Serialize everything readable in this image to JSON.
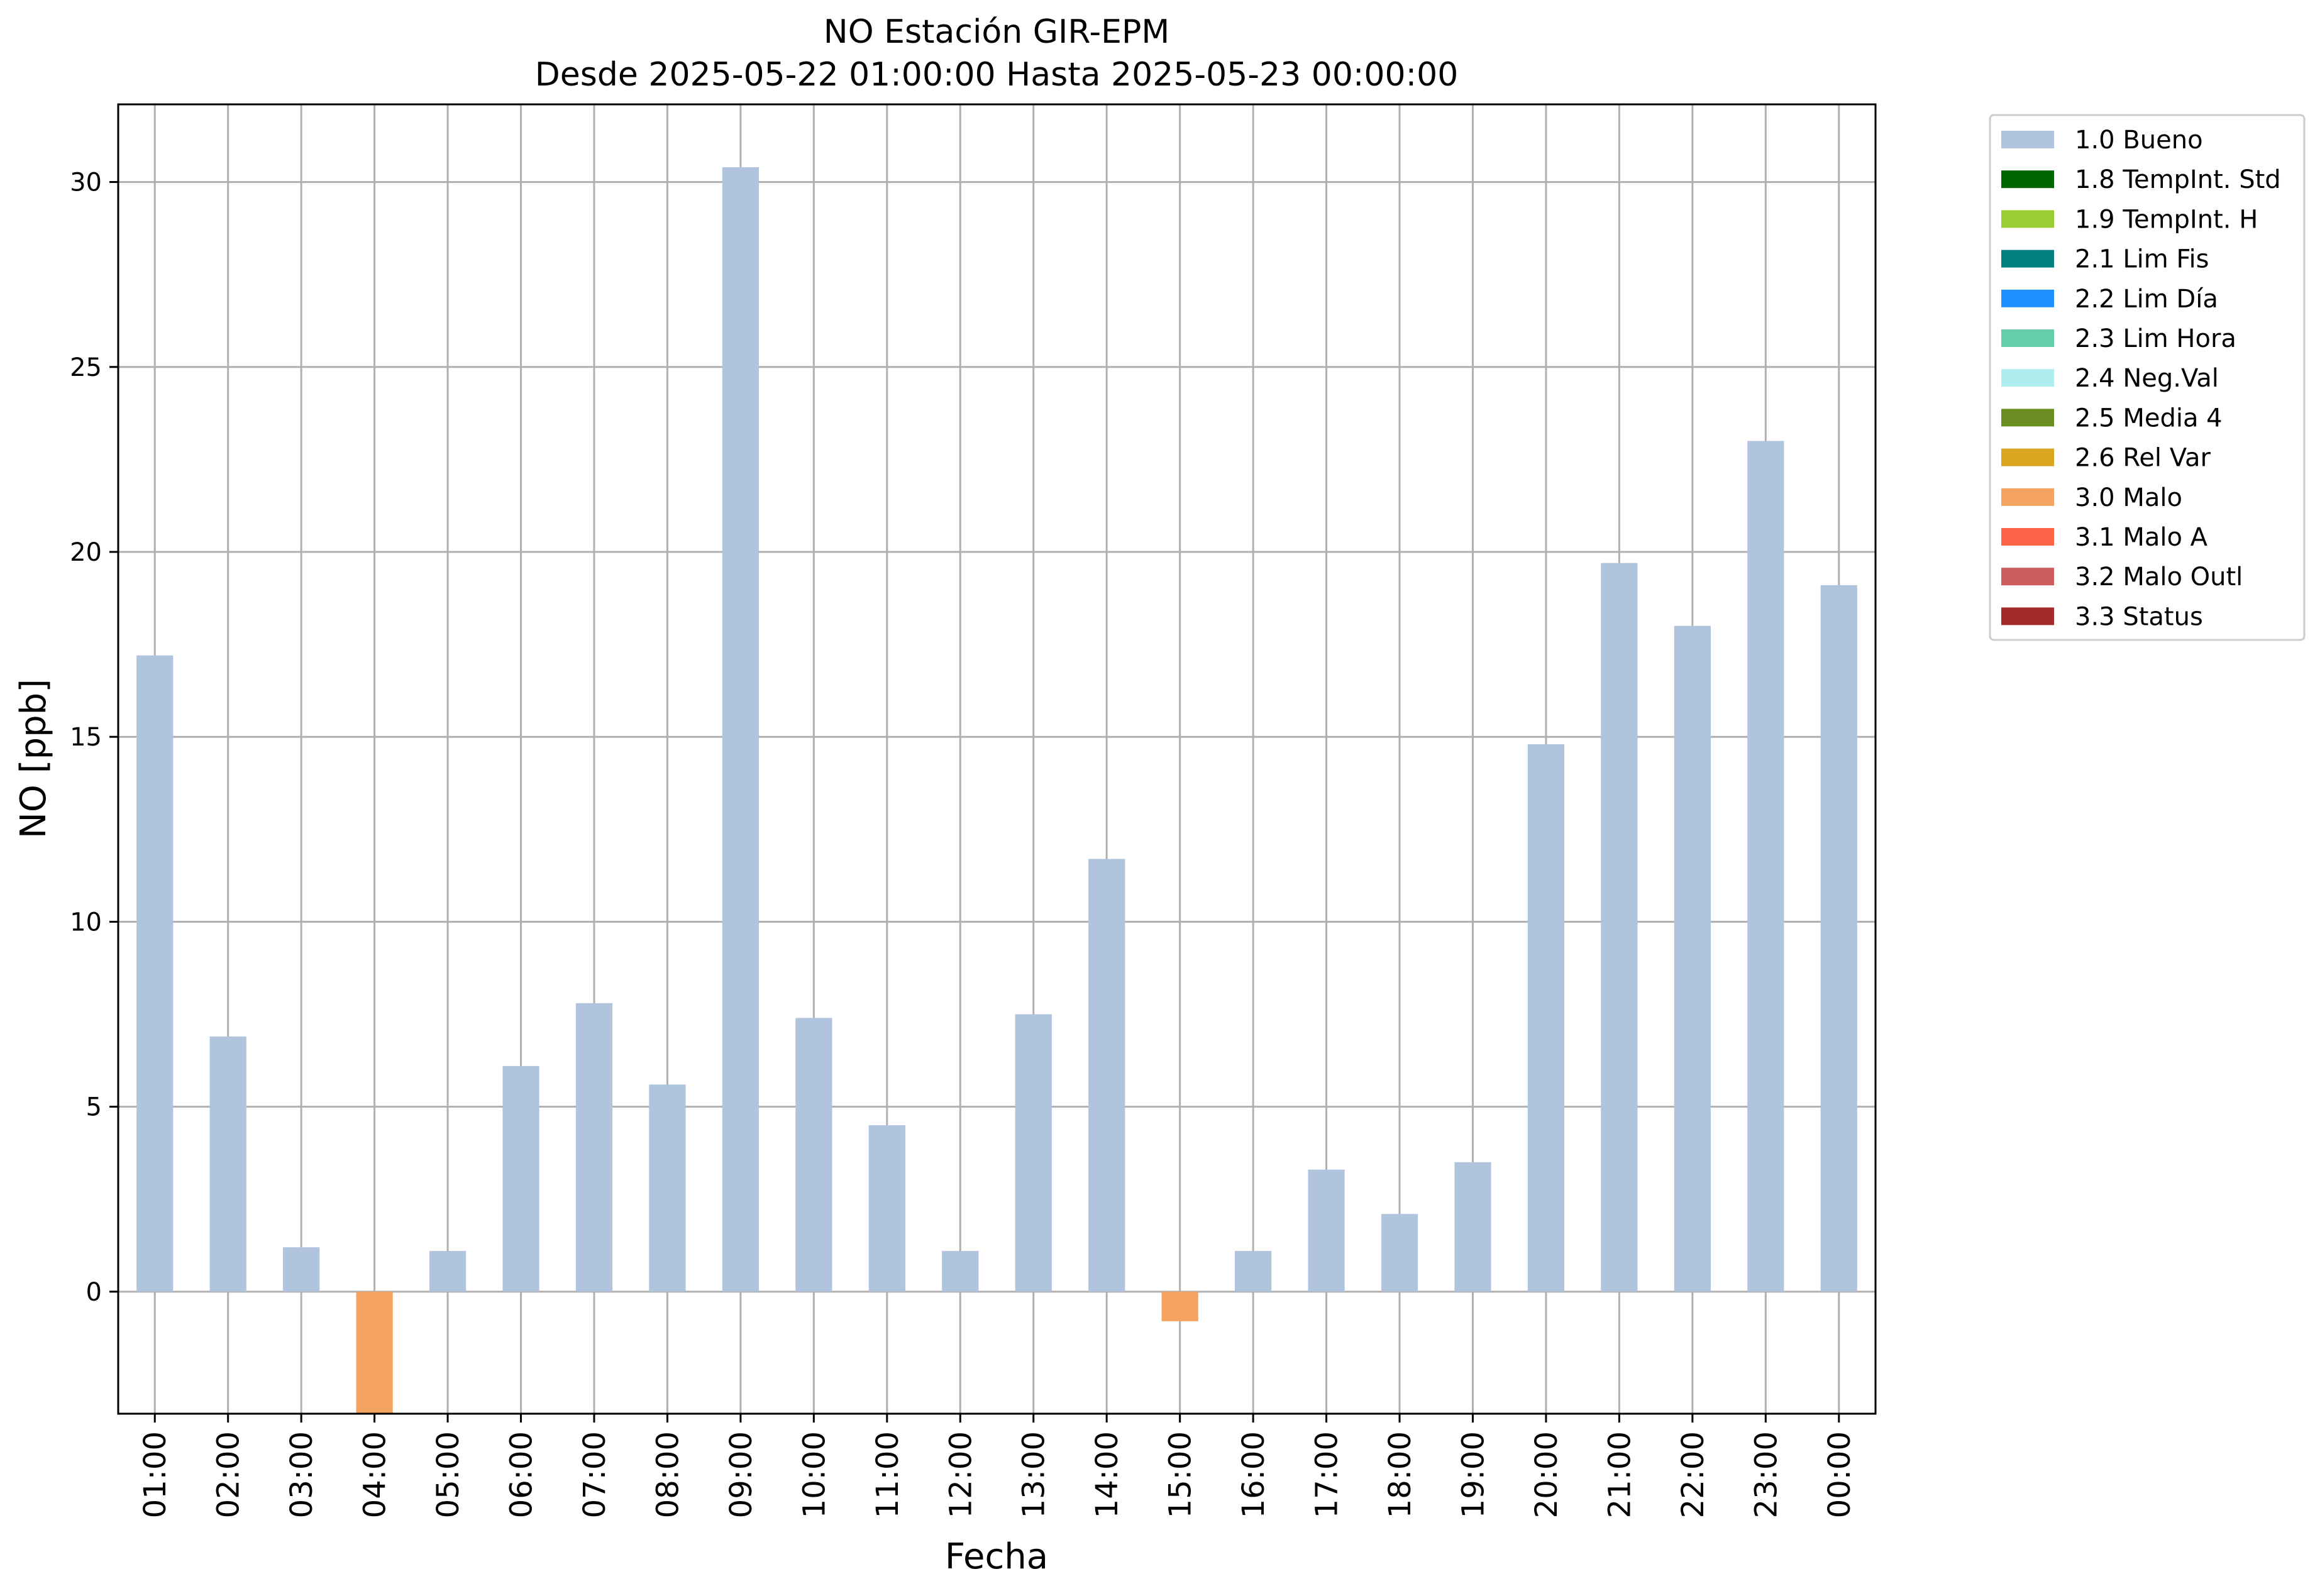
{
  "chart_data": {
    "type": "bar",
    "title": "NO Estación GIR-EPM",
    "subtitle": "Desde 2025-05-22 01:00:00 Hasta 2025-05-23 00:00:00",
    "xlabel": "Fecha",
    "ylabel": "NO [ppb]",
    "categories": [
      "01:00",
      "02:00",
      "03:00",
      "04:00",
      "05:00",
      "06:00",
      "07:00",
      "08:00",
      "09:00",
      "10:00",
      "11:00",
      "12:00",
      "13:00",
      "14:00",
      "15:00",
      "16:00",
      "17:00",
      "18:00",
      "19:00",
      "20:00",
      "21:00",
      "22:00",
      "23:00",
      "00:00"
    ],
    "values": [
      17.2,
      6.9,
      1.2,
      -3.3,
      1.1,
      6.1,
      7.8,
      5.6,
      30.4,
      7.4,
      4.5,
      1.1,
      7.5,
      11.7,
      -0.8,
      1.1,
      3.3,
      2.1,
      3.5,
      14.8,
      19.7,
      18.0,
      23.0,
      19.1
    ],
    "flags": [
      "1.0 Bueno",
      "1.0 Bueno",
      "1.0 Bueno",
      "3.0 Malo",
      "1.0 Bueno",
      "1.0 Bueno",
      "1.0 Bueno",
      "1.0 Bueno",
      "1.0 Bueno",
      "1.0 Bueno",
      "1.0 Bueno",
      "1.0 Bueno",
      "1.0 Bueno",
      "1.0 Bueno",
      "3.0 Malo",
      "1.0 Bueno",
      "1.0 Bueno",
      "1.0 Bueno",
      "1.0 Bueno",
      "1.0 Bueno",
      "1.0 Bueno",
      "1.0 Bueno",
      "1.0 Bueno",
      "1.0 Bueno"
    ],
    "ylim": [
      -3.3,
      32.1
    ],
    "yticks": [
      0,
      5,
      10,
      15,
      20,
      25,
      30
    ],
    "grid": true,
    "legend_position": "outside-top-right",
    "legend": [
      {
        "label": "1.0 Bueno",
        "color": "#b0c4de"
      },
      {
        "label": "1.8 TempInt. Std",
        "color": "#006400"
      },
      {
        "label": "1.9 TempInt. H",
        "color": "#9acd32"
      },
      {
        "label": "2.1 Lim Fis",
        "color": "#008080"
      },
      {
        "label": "2.2 Lim Día",
        "color": "#1e90ff"
      },
      {
        "label": "2.3 Lim Hora",
        "color": "#66cdaa"
      },
      {
        "label": "2.4 Neg.Val",
        "color": "#afeeee"
      },
      {
        "label": "2.5 Media 4",
        "color": "#6b8e23"
      },
      {
        "label": "2.6 Rel Var",
        "color": "#daa520"
      },
      {
        "label": "3.0 Malo",
        "color": "#f4a460"
      },
      {
        "label": "3.1 Malo A",
        "color": "#ff6347"
      },
      {
        "label": "3.2 Malo Outl",
        "color": "#cd5c5c"
      },
      {
        "label": "3.3 Status",
        "color": "#a52a2a"
      }
    ]
  }
}
